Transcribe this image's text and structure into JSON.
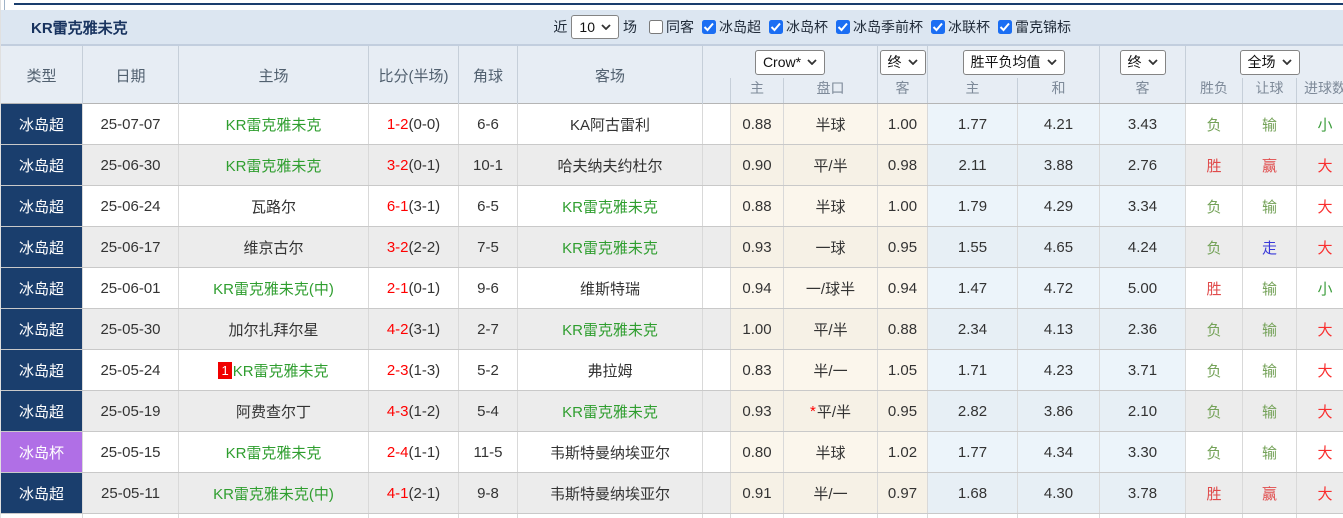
{
  "title": "KR雷克雅未克",
  "filters": {
    "near_label": "近",
    "near_value": "10",
    "unit_label": "场",
    "same_away": {
      "label": "同客",
      "checked": false
    },
    "competitions": [
      {
        "label": "冰岛超",
        "checked": true
      },
      {
        "label": "冰岛杯",
        "checked": true
      },
      {
        "label": "冰岛季前杯",
        "checked": true
      },
      {
        "label": "冰联杯",
        "checked": true
      },
      {
        "label": "雷克锦标",
        "checked": true
      }
    ]
  },
  "header": {
    "type": "类型",
    "date": "日期",
    "home": "主场",
    "score": "比分(半场)",
    "corners": "角球",
    "away": "客场",
    "selectors": {
      "bookmaker": "Crow*",
      "handicap_time": "终",
      "avg_type": "胜平负均值",
      "europe_time": "终",
      "scope": "全场"
    },
    "subheaders": [
      "主",
      "盘口",
      "客",
      "主",
      "和",
      "客",
      "胜负",
      "让球",
      "进球数"
    ]
  },
  "colors": {
    "league_navy": "#1a3e6d",
    "league_purple": "#b06fe6",
    "team_green": "#2f9e2f",
    "score_red": "#ff0000",
    "result_green": "#74a258",
    "result_red": "#e04b4b",
    "result_blue": "#3a3ad8",
    "handicap_col_bg": "#fbf6ec",
    "europe_col_bg": "#ecf4fa",
    "checkbox_blue": "#1b6ef3"
  },
  "rows": [
    {
      "league": "冰岛超",
      "league_color": "navy",
      "date": "25-07-07",
      "home": "KR雷克雅未克",
      "home_green": true,
      "home_badge": "",
      "score_ft": "1-2",
      "score_ht": "(0-0)",
      "corners": "6-6",
      "away": "KA阿古雷利",
      "away_green": false,
      "ah": {
        "home": "0.88",
        "line": "半球",
        "star": false,
        "away": "1.00"
      },
      "eu": {
        "home": "1.77",
        "draw": "4.21",
        "away": "3.43"
      },
      "results": {
        "wdl": "负",
        "wdl_color": "green",
        "handicap": "输",
        "handicap_color": "green",
        "goals": "小",
        "goals_color": "green"
      }
    },
    {
      "league": "冰岛超",
      "league_color": "navy",
      "date": "25-06-30",
      "home": "KR雷克雅未克",
      "home_green": true,
      "home_badge": "",
      "score_ft": "3-2",
      "score_ht": "(0-1)",
      "corners": "10-1",
      "away": "哈夫纳夫约杜尔",
      "away_green": false,
      "ah": {
        "home": "0.90",
        "line": "平/半",
        "star": false,
        "away": "0.98"
      },
      "eu": {
        "home": "2.11",
        "draw": "3.88",
        "away": "2.76"
      },
      "results": {
        "wdl": "胜",
        "wdl_color": "red",
        "handicap": "赢",
        "handicap_color": "red",
        "goals": "大",
        "goals_color": "red"
      }
    },
    {
      "league": "冰岛超",
      "league_color": "navy",
      "date": "25-06-24",
      "home": "瓦路尔",
      "home_green": false,
      "home_badge": "",
      "score_ft": "6-1",
      "score_ht": "(3-1)",
      "corners": "6-5",
      "away": "KR雷克雅未克",
      "away_green": true,
      "ah": {
        "home": "0.88",
        "line": "半球",
        "star": false,
        "away": "1.00"
      },
      "eu": {
        "home": "1.79",
        "draw": "4.29",
        "away": "3.34"
      },
      "results": {
        "wdl": "负",
        "wdl_color": "green",
        "handicap": "输",
        "handicap_color": "green",
        "goals": "大",
        "goals_color": "red"
      }
    },
    {
      "league": "冰岛超",
      "league_color": "navy",
      "date": "25-06-17",
      "home": "维京古尔",
      "home_green": false,
      "home_badge": "",
      "score_ft": "3-2",
      "score_ht": "(2-2)",
      "corners": "7-5",
      "away": "KR雷克雅未克",
      "away_green": true,
      "ah": {
        "home": "0.93",
        "line": "一球",
        "star": false,
        "away": "0.95"
      },
      "eu": {
        "home": "1.55",
        "draw": "4.65",
        "away": "4.24"
      },
      "results": {
        "wdl": "负",
        "wdl_color": "green",
        "handicap": "走",
        "handicap_color": "blue",
        "goals": "大",
        "goals_color": "red"
      }
    },
    {
      "league": "冰岛超",
      "league_color": "navy",
      "date": "25-06-01",
      "home": "KR雷克雅未克(中)",
      "home_green": true,
      "home_badge": "",
      "score_ft": "2-1",
      "score_ht": "(0-1)",
      "corners": "9-6",
      "away": "维斯特瑞",
      "away_green": false,
      "ah": {
        "home": "0.94",
        "line": "一/球半",
        "star": false,
        "away": "0.94"
      },
      "eu": {
        "home": "1.47",
        "draw": "4.72",
        "away": "5.00"
      },
      "results": {
        "wdl": "胜",
        "wdl_color": "red",
        "handicap": "输",
        "handicap_color": "green",
        "goals": "小",
        "goals_color": "green"
      }
    },
    {
      "league": "冰岛超",
      "league_color": "navy",
      "date": "25-05-30",
      "home": "加尔扎拜尔星",
      "home_green": false,
      "home_badge": "",
      "score_ft": "4-2",
      "score_ht": "(3-1)",
      "corners": "2-7",
      "away": "KR雷克雅未克",
      "away_green": true,
      "ah": {
        "home": "1.00",
        "line": "平/半",
        "star": false,
        "away": "0.88"
      },
      "eu": {
        "home": "2.34",
        "draw": "4.13",
        "away": "2.36"
      },
      "results": {
        "wdl": "负",
        "wdl_color": "green",
        "handicap": "输",
        "handicap_color": "green",
        "goals": "大",
        "goals_color": "red"
      }
    },
    {
      "league": "冰岛超",
      "league_color": "navy",
      "date": "25-05-24",
      "home": "KR雷克雅未克",
      "home_green": true,
      "home_badge": "1",
      "score_ft": "2-3",
      "score_ht": "(1-3)",
      "corners": "5-2",
      "away": "弗拉姆",
      "away_green": false,
      "ah": {
        "home": "0.83",
        "line": "半/一",
        "star": false,
        "away": "1.05"
      },
      "eu": {
        "home": "1.71",
        "draw": "4.23",
        "away": "3.71"
      },
      "results": {
        "wdl": "负",
        "wdl_color": "green",
        "handicap": "输",
        "handicap_color": "green",
        "goals": "大",
        "goals_color": "red"
      }
    },
    {
      "league": "冰岛超",
      "league_color": "navy",
      "date": "25-05-19",
      "home": "阿费查尔丁",
      "home_green": false,
      "home_badge": "",
      "score_ft": "4-3",
      "score_ht": "(1-2)",
      "corners": "5-4",
      "away": "KR雷克雅未克",
      "away_green": true,
      "ah": {
        "home": "0.93",
        "line": "平/半",
        "star": true,
        "away": "0.95"
      },
      "eu": {
        "home": "2.82",
        "draw": "3.86",
        "away": "2.10"
      },
      "results": {
        "wdl": "负",
        "wdl_color": "green",
        "handicap": "输",
        "handicap_color": "green",
        "goals": "大",
        "goals_color": "red"
      }
    },
    {
      "league": "冰岛杯",
      "league_color": "purple",
      "date": "25-05-15",
      "home": "KR雷克雅未克",
      "home_green": true,
      "home_badge": "",
      "score_ft": "2-4",
      "score_ht": "(1-1)",
      "corners": "11-5",
      "away": "韦斯特曼纳埃亚尔",
      "away_green": false,
      "ah": {
        "home": "0.80",
        "line": "半球",
        "star": false,
        "away": "1.02"
      },
      "eu": {
        "home": "1.77",
        "draw": "4.34",
        "away": "3.30"
      },
      "results": {
        "wdl": "负",
        "wdl_color": "green",
        "handicap": "输",
        "handicap_color": "green",
        "goals": "大",
        "goals_color": "red"
      }
    },
    {
      "league": "冰岛超",
      "league_color": "navy",
      "date": "25-05-11",
      "home": "KR雷克雅未克(中)",
      "home_green": true,
      "home_badge": "",
      "score_ft": "4-1",
      "score_ht": "(2-1)",
      "corners": "9-8",
      "away": "韦斯特曼纳埃亚尔",
      "away_green": false,
      "ah": {
        "home": "0.91",
        "line": "半/一",
        "star": false,
        "away": "0.97"
      },
      "eu": {
        "home": "1.68",
        "draw": "4.30",
        "away": "3.78"
      },
      "results": {
        "wdl": "胜",
        "wdl_color": "red",
        "handicap": "赢",
        "handicap_color": "red",
        "goals": "大",
        "goals_color": "red"
      }
    }
  ]
}
